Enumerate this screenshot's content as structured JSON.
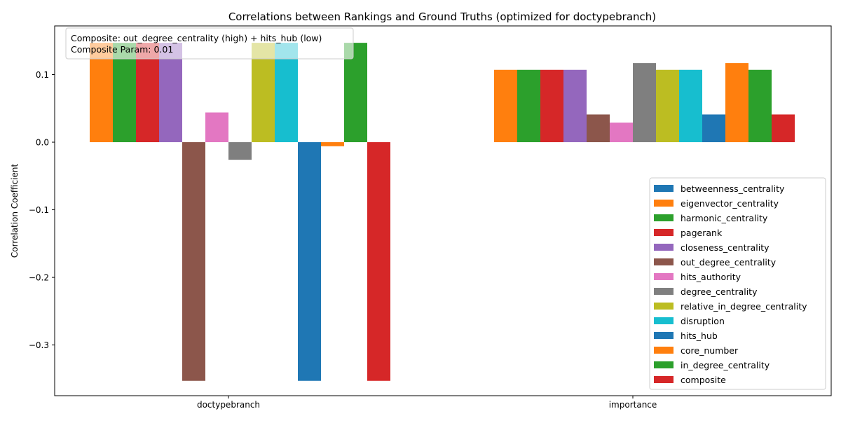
{
  "chart_data": {
    "type": "bar",
    "title": "Correlations between Rankings and Ground Truths (optimized for doctypebranch)",
    "xlabel": "",
    "ylabel": "Correlation Coefficient",
    "categories": [
      "doctypebranch",
      "importance"
    ],
    "ylim": [
      -0.375,
      0.172
    ],
    "yticks": [
      -0.3,
      -0.2,
      -0.1,
      0.0,
      0.1
    ],
    "ytick_labels": [
      "−0.3",
      "−0.2",
      "−0.1",
      "0.0",
      "0.1"
    ],
    "grid": false,
    "legend_position": "lower-right",
    "annotation": {
      "line1": "Composite: out_degree_centrality (high) + hits_hub (low)",
      "line2": "Composite Param: 0.01"
    },
    "series": [
      {
        "name": "betweenness_centrality",
        "color": "#1f77b4",
        "values": [
          0.0,
          0.0
        ]
      },
      {
        "name": "eigenvector_centrality",
        "color": "#ff7f0e",
        "values": [
          0.147,
          0.107
        ]
      },
      {
        "name": "harmonic_centrality",
        "color": "#2ca02c",
        "values": [
          0.147,
          0.107
        ]
      },
      {
        "name": "pagerank",
        "color": "#d62728",
        "values": [
          0.147,
          0.107
        ]
      },
      {
        "name": "closeness_centrality",
        "color": "#9467bd",
        "values": [
          0.147,
          0.107
        ]
      },
      {
        "name": "out_degree_centrality",
        "color": "#8c564b",
        "values": [
          -0.353,
          0.041
        ]
      },
      {
        "name": "hits_authority",
        "color": "#e377c2",
        "values": [
          0.044,
          0.029
        ]
      },
      {
        "name": "degree_centrality",
        "color": "#7f7f7f",
        "values": [
          -0.026,
          0.117
        ]
      },
      {
        "name": "relative_in_degree_centrality",
        "color": "#bcbd22",
        "values": [
          0.147,
          0.107
        ]
      },
      {
        "name": "disruption",
        "color": "#17becf",
        "values": [
          0.147,
          0.107
        ]
      },
      {
        "name": "hits_hub",
        "color": "#1f77b4",
        "values": [
          -0.353,
          0.041
        ]
      },
      {
        "name": "core_number",
        "color": "#ff7f0e",
        "values": [
          -0.006,
          0.117
        ]
      },
      {
        "name": "in_degree_centrality",
        "color": "#2ca02c",
        "values": [
          0.147,
          0.107
        ]
      },
      {
        "name": "composite",
        "color": "#d62728",
        "values": [
          -0.353,
          0.041
        ]
      }
    ]
  }
}
